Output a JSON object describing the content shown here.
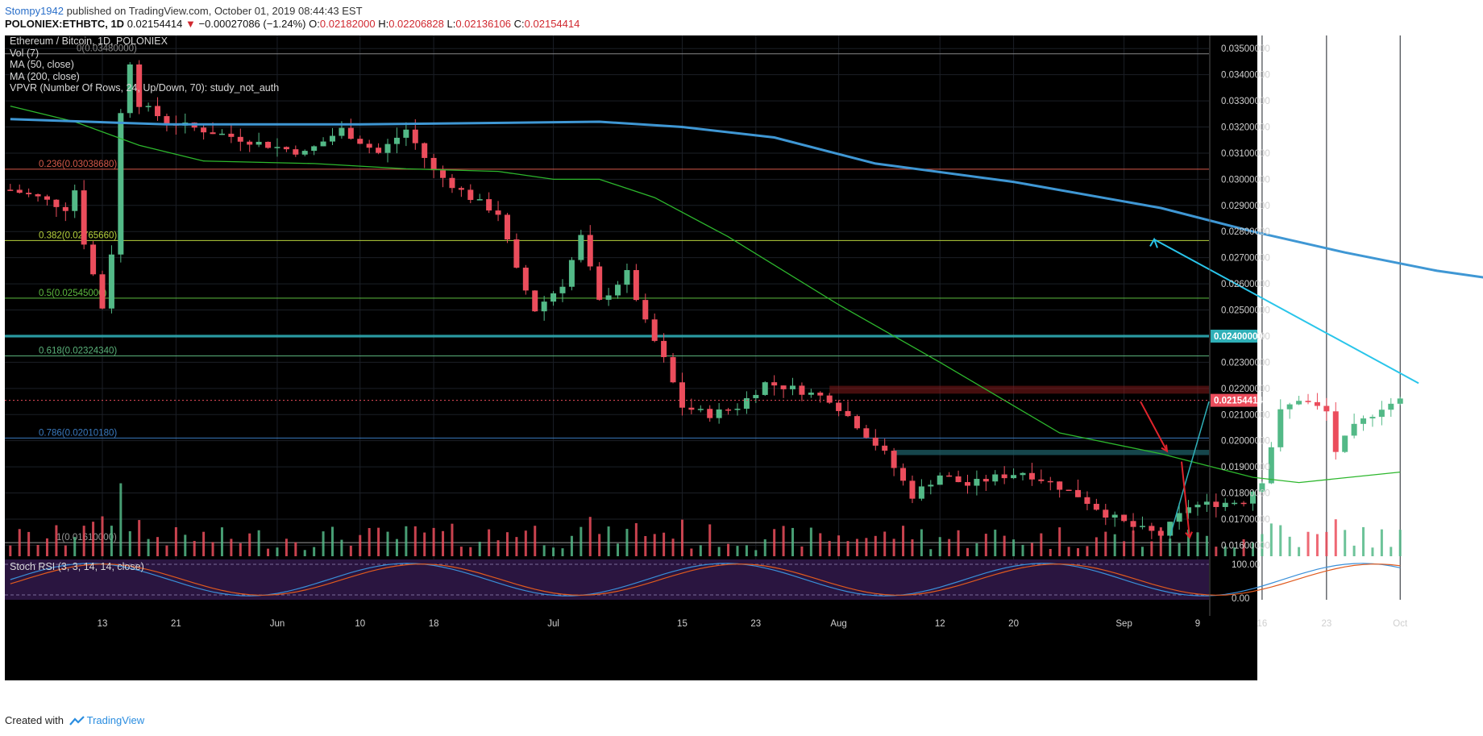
{
  "header": {
    "author": "Stompy1942",
    "published": "published on TradingView.com, October 01, 2019 08:44:43 EST",
    "symbol": "POLONIEX:ETHBTC, 1D",
    "last": "0.02154414",
    "change_arrow": "▼",
    "change": "−0.00027086 (−1.24%)",
    "o_label": "O:",
    "o_val": "0.02182000",
    "h_label": "H:",
    "h_val": "0.02206828",
    "l_label": "L:",
    "l_val": "0.02136106",
    "c_label": "C:",
    "c_val": "0.02154414"
  },
  "legend": [
    "Ethereum / Bitcoin, 1D, POLONIEX",
    "Vol (7)",
    "MA (50, close)",
    "MA (200, close)",
    "VPVR (Number Of Rows, 24, Up/Down, 70): study_not_auth"
  ],
  "footer": {
    "created_with": "Created with",
    "brand": "TradingView"
  },
  "chart_data": {
    "type": "candlestick",
    "title": "Ethereum / Bitcoin, 1D, POLONIEX",
    "y_axis": {
      "ylim": [
        0.01555,
        0.0355
      ],
      "ticks": [
        "0.03500000",
        "0.03400000",
        "0.03300000",
        "0.03200000",
        "0.03100000",
        "0.03000000",
        "0.02900000",
        "0.02800000",
        "0.02700000",
        "0.02600000",
        "0.02500000",
        "0.02400000",
        "0.02300000",
        "0.02200000",
        "0.02100000",
        "0.02000000",
        "0.01900000",
        "0.01800000",
        "0.01700000",
        "0.01600000"
      ]
    },
    "x_axis": {
      "first_date": "2019-05-03",
      "last_date": "2019-10-01",
      "ticks": [
        {
          "date": "2019-05-13",
          "label": "13"
        },
        {
          "date": "2019-05-21",
          "label": "21"
        },
        {
          "date": "2019-06-01",
          "label": "Jun"
        },
        {
          "date": "2019-06-10",
          "label": "10"
        },
        {
          "date": "2019-06-18",
          "label": "18"
        },
        {
          "date": "2019-07-01",
          "label": "Jul"
        },
        {
          "date": "2019-07-15",
          "label": "15"
        },
        {
          "date": "2019-07-23",
          "label": "23"
        },
        {
          "date": "2019-08-01",
          "label": "Aug"
        },
        {
          "date": "2019-08-12",
          "label": "12"
        },
        {
          "date": "2019-08-20",
          "label": "20"
        },
        {
          "date": "2019-09-01",
          "label": "Sep"
        },
        {
          "date": "2019-09-09",
          "label": "9"
        },
        {
          "date": "2019-09-16",
          "label": "16"
        },
        {
          "date": "2019-09-23",
          "label": "23"
        },
        {
          "date": "2019-10-01",
          "label": "Oct"
        }
      ]
    },
    "close_series": [
      {
        "date": "2019-05-03",
        "close": 0.0296
      },
      {
        "date": "2019-05-06",
        "close": 0.0293
      },
      {
        "date": "2019-05-09",
        "close": 0.0289
      },
      {
        "date": "2019-05-10",
        "close": 0.0296
      },
      {
        "date": "2019-05-11",
        "close": 0.0276
      },
      {
        "date": "2019-05-13",
        "close": 0.0251
      },
      {
        "date": "2019-05-14",
        "close": 0.0272
      },
      {
        "date": "2019-05-15",
        "close": 0.0325
      },
      {
        "date": "2019-05-16",
        "close": 0.0345
      },
      {
        "date": "2019-05-17",
        "close": 0.0329
      },
      {
        "date": "2019-05-20",
        "close": 0.0322
      },
      {
        "date": "2019-05-25",
        "close": 0.0318
      },
      {
        "date": "2019-05-31",
        "close": 0.0313
      },
      {
        "date": "2019-06-04",
        "close": 0.031
      },
      {
        "date": "2019-06-08",
        "close": 0.0319
      },
      {
        "date": "2019-06-12",
        "close": 0.031
      },
      {
        "date": "2019-06-15",
        "close": 0.0319
      },
      {
        "date": "2019-06-18",
        "close": 0.0303
      },
      {
        "date": "2019-06-22",
        "close": 0.0293
      },
      {
        "date": "2019-06-25",
        "close": 0.0287
      },
      {
        "date": "2019-06-27",
        "close": 0.0265
      },
      {
        "date": "2019-06-29",
        "close": 0.025
      },
      {
        "date": "2019-07-02",
        "close": 0.026
      },
      {
        "date": "2019-07-04",
        "close": 0.0278
      },
      {
        "date": "2019-07-06",
        "close": 0.0253
      },
      {
        "date": "2019-07-09",
        "close": 0.0264
      },
      {
        "date": "2019-07-11",
        "close": 0.0245
      },
      {
        "date": "2019-07-13",
        "close": 0.0231
      },
      {
        "date": "2019-07-15",
        "close": 0.0213
      },
      {
        "date": "2019-07-18",
        "close": 0.021
      },
      {
        "date": "2019-07-21",
        "close": 0.0213
      },
      {
        "date": "2019-07-24",
        "close": 0.0222
      },
      {
        "date": "2019-07-27",
        "close": 0.022
      },
      {
        "date": "2019-07-31",
        "close": 0.0216
      },
      {
        "date": "2019-08-03",
        "close": 0.0206
      },
      {
        "date": "2019-08-06",
        "close": 0.0195
      },
      {
        "date": "2019-08-09",
        "close": 0.0179
      },
      {
        "date": "2019-08-12",
        "close": 0.0187
      },
      {
        "date": "2019-08-15",
        "close": 0.0183
      },
      {
        "date": "2019-08-18",
        "close": 0.0186
      },
      {
        "date": "2019-08-21",
        "close": 0.0188
      },
      {
        "date": "2019-08-24",
        "close": 0.0184
      },
      {
        "date": "2019-08-27",
        "close": 0.0179
      },
      {
        "date": "2019-08-30",
        "close": 0.0172
      },
      {
        "date": "2019-09-02",
        "close": 0.0167
      },
      {
        "date": "2019-09-05",
        "close": 0.0164
      },
      {
        "date": "2019-09-08",
        "close": 0.0175
      },
      {
        "date": "2019-09-11",
        "close": 0.0176
      },
      {
        "date": "2019-09-14",
        "close": 0.0177
      },
      {
        "date": "2019-09-16",
        "close": 0.0185
      },
      {
        "date": "2019-09-18",
        "close": 0.0211
      },
      {
        "date": "2019-09-20",
        "close": 0.0216
      },
      {
        "date": "2019-09-23",
        "close": 0.0211
      },
      {
        "date": "2019-09-24",
        "close": 0.0196
      },
      {
        "date": "2019-09-26",
        "close": 0.0205
      },
      {
        "date": "2019-09-29",
        "close": 0.0213
      },
      {
        "date": "2019-10-01",
        "close": 0.02154414
      }
    ],
    "ma50": [
      {
        "date": "2019-05-03",
        "v": 0.0328
      },
      {
        "date": "2019-05-10",
        "v": 0.0322
      },
      {
        "date": "2019-05-17",
        "v": 0.0313
      },
      {
        "date": "2019-05-24",
        "v": 0.0307
      },
      {
        "date": "2019-06-05",
        "v": 0.0306
      },
      {
        "date": "2019-06-15",
        "v": 0.0304
      },
      {
        "date": "2019-06-25",
        "v": 0.0303
      },
      {
        "date": "2019-07-01",
        "v": 0.03
      },
      {
        "date": "2019-07-06",
        "v": 0.03
      },
      {
        "date": "2019-07-12",
        "v": 0.0293
      },
      {
        "date": "2019-07-20",
        "v": 0.0278
      },
      {
        "date": "2019-08-01",
        "v": 0.0252
      },
      {
        "date": "2019-08-12",
        "v": 0.023
      },
      {
        "date": "2019-08-25",
        "v": 0.0203
      },
      {
        "date": "2019-09-05",
        "v": 0.0195
      },
      {
        "date": "2019-09-15",
        "v": 0.0186
      },
      {
        "date": "2019-09-20",
        "v": 0.0184
      },
      {
        "date": "2019-10-01",
        "v": 0.0188
      }
    ],
    "ma200": [
      {
        "date": "2019-05-03",
        "v": 0.0323
      },
      {
        "date": "2019-05-20",
        "v": 0.0321
      },
      {
        "date": "2019-06-10",
        "v": 0.0321
      },
      {
        "date": "2019-07-06",
        "v": 0.0322
      },
      {
        "date": "2019-07-15",
        "v": 0.032
      },
      {
        "date": "2019-07-25",
        "v": 0.0316
      },
      {
        "date": "2019-08-05",
        "v": 0.0306
      },
      {
        "date": "2019-08-20",
        "v": 0.0299
      },
      {
        "date": "2019-09-05",
        "v": 0.0289
      },
      {
        "date": "2019-09-15",
        "v": 0.028
      },
      {
        "date": "2019-09-25",
        "v": 0.0272
      },
      {
        "date": "2019-10-05",
        "v": 0.0265
      },
      {
        "date": "2019-10-13",
        "v": 0.0261
      }
    ],
    "fibonacci": [
      {
        "label": "0(0.03480000)",
        "price": 0.0348
      },
      {
        "label": "0.236(0.03038680)",
        "price": 0.0303868
      },
      {
        "label": "0.382(0.02765660)",
        "price": 0.0276566
      },
      {
        "label": "0.5(0.02545000)",
        "price": 0.02545
      },
      {
        "label": "0.618(0.02324340)",
        "price": 0.0232434
      },
      {
        "label": "0.786(0.02010180)",
        "price": 0.0201018
      },
      {
        "label": "1(0.01610000)",
        "price": 0.0161
      }
    ],
    "price_labels": {
      "level": "0.02400000",
      "last": "0.02154414"
    },
    "indicator": {
      "name": "Stoch RSI (3, 3, 14, 14, close)",
      "ticks": [
        "100.00",
        "0.00"
      ]
    },
    "colors": {
      "background": "#000000",
      "up": "#53b987",
      "down": "#eb4d5c",
      "ma50": "#2db72d",
      "ma200": "#3f97d4",
      "level": "#2fb0b8",
      "arrow_up": "#29c5ea",
      "arrow_down": "#e0242c"
    }
  }
}
